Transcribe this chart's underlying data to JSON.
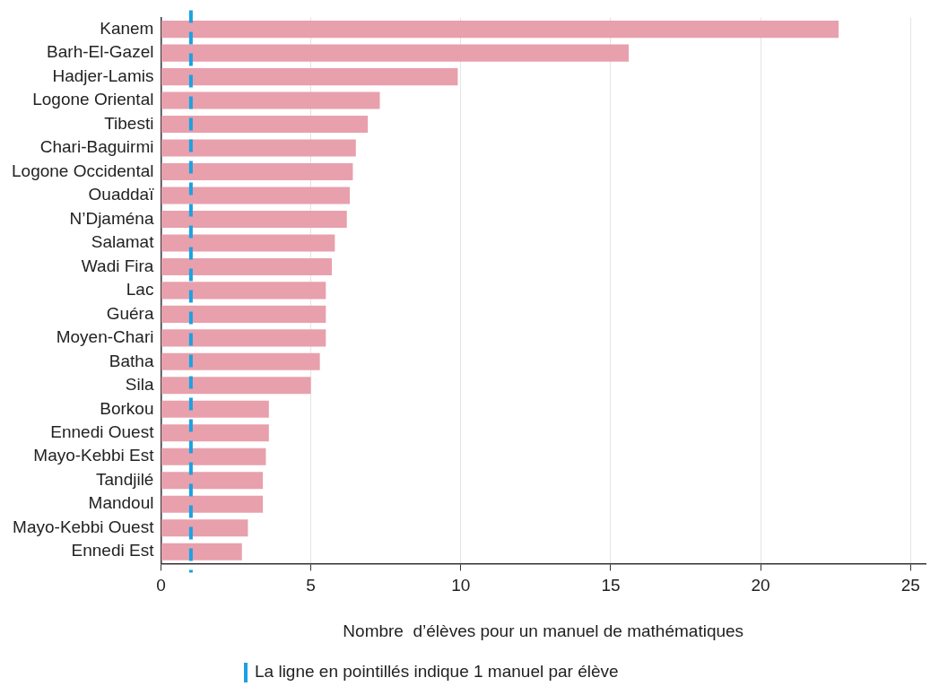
{
  "chart_data": {
    "type": "bar",
    "orientation": "horizontal",
    "xlabel": "Nombre  d’élèves pour un manuel de mathématiques",
    "categories": [
      "Kanem",
      "Barh-El-Gazel",
      "Hadjer-Lamis",
      "Logone Oriental",
      "Tibesti",
      "Chari-Baguirmi",
      "Logone Occidental",
      "Ouaddaï",
      "N’Djaména",
      "Salamat",
      "Wadi Fira",
      "Lac",
      "Guéra",
      "Moyen-Chari",
      "Batha",
      "Sila",
      "Borkou",
      "Ennedi Ouest",
      "Mayo-Kebbi Est",
      "Tandjilé",
      "Mandoul",
      "Mayo-Kebbi Ouest",
      "Ennedi Est"
    ],
    "values": [
      22.6,
      15.6,
      9.9,
      7.3,
      6.9,
      6.5,
      6.4,
      6.3,
      6.2,
      5.8,
      5.7,
      5.5,
      5.5,
      5.5,
      5.3,
      5.0,
      3.6,
      3.6,
      3.5,
      3.4,
      3.4,
      2.9,
      2.7
    ],
    "color": "#e8a0ac",
    "xlim": [
      0,
      25.5
    ],
    "xticks": [
      0,
      5,
      10,
      15,
      20,
      25
    ],
    "grid": "x",
    "ref_lines": [
      {
        "axis": "x",
        "value": 1,
        "label": "La ligne en pointillés indique 1 manuel par élève",
        "color": "#1ba1e2",
        "line_style": "dashed"
      }
    ]
  }
}
